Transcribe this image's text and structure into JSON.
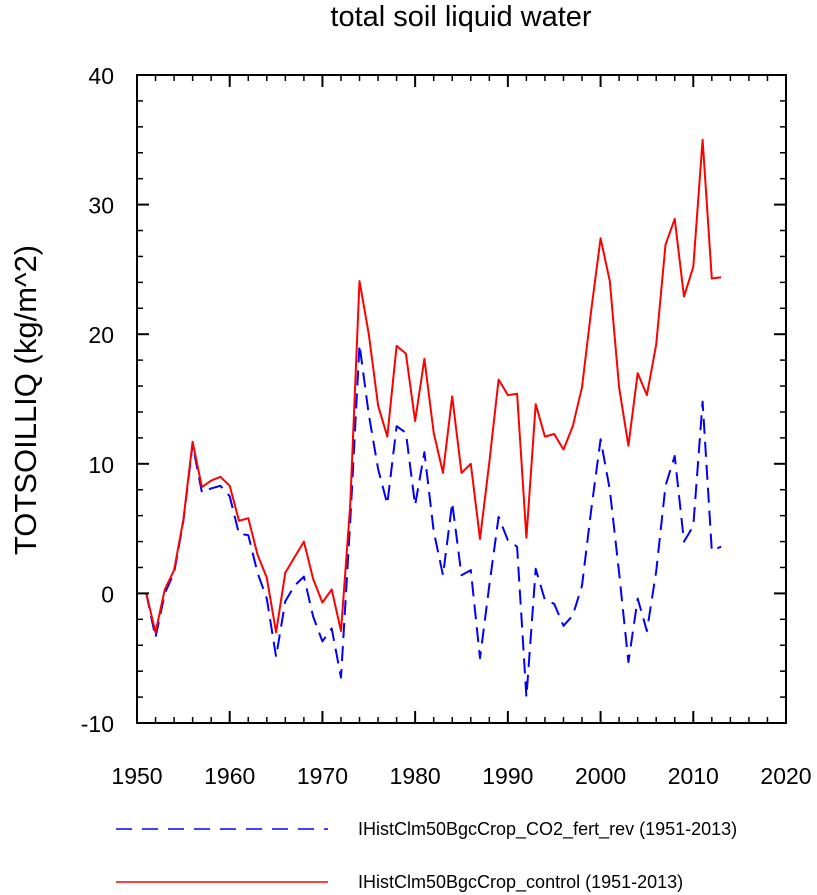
{
  "chart_data": {
    "type": "line",
    "title": "total soil liquid water",
    "xlabel": "",
    "ylabel": "TOTSOILLIQ  (kg/m^2)",
    "xlim": [
      1950,
      2020
    ],
    "ylim": [
      -10,
      40
    ],
    "x_ticks": [
      1950,
      1960,
      1970,
      1980,
      1990,
      2000,
      2010,
      2020
    ],
    "y_ticks": [
      -10,
      0,
      10,
      20,
      30,
      40
    ],
    "grid": false,
    "legend_position": "bottom",
    "x": [
      1951,
      1952,
      1953,
      1954,
      1955,
      1956,
      1957,
      1958,
      1959,
      1960,
      1961,
      1962,
      1963,
      1964,
      1965,
      1966,
      1967,
      1968,
      1969,
      1970,
      1971,
      1972,
      1973,
      1974,
      1975,
      1976,
      1977,
      1978,
      1979,
      1980,
      1981,
      1982,
      1983,
      1984,
      1985,
      1986,
      1987,
      1988,
      1989,
      1990,
      1991,
      1992,
      1993,
      1994,
      1995,
      1996,
      1997,
      1998,
      1999,
      2000,
      2001,
      2002,
      2003,
      2004,
      2005,
      2006,
      2007,
      2008,
      2009,
      2010,
      2011,
      2012,
      2013
    ],
    "series": [
      {
        "name": "IHistClm50BgcCrop_CO2_fert_rev (1951-2013)",
        "color": "#0000ff",
        "dash": "dashed",
        "values": [
          0.0,
          -3.4,
          0.0,
          1.6,
          5.6,
          11.5,
          7.8,
          8.1,
          8.3,
          7.5,
          4.6,
          4.5,
          1.6,
          -0.4,
          -4.9,
          -0.6,
          0.6,
          1.3,
          -1.8,
          -3.7,
          -2.7,
          -6.5,
          5.5,
          19.2,
          13.8,
          9.6,
          6.9,
          12.9,
          12.4,
          6.8,
          10.9,
          4.8,
          1.4,
          7.0,
          1.4,
          1.8,
          -5.0,
          0.6,
          5.9,
          4.1,
          3.6,
          -8.0,
          1.9,
          -0.5,
          -0.8,
          -2.5,
          -1.7,
          0.6,
          6.5,
          11.9,
          8.0,
          1.6,
          -5.3,
          -0.4,
          -2.9,
          1.7,
          8.3,
          10.6,
          4.0,
          5.2,
          14.8,
          3.3,
          3.6
        ]
      },
      {
        "name": "IHistClm50BgcCrop_control (1951-2013)",
        "color": "#ff0000",
        "dash": "solid",
        "values": [
          0.0,
          -3.0,
          0.3,
          1.8,
          5.7,
          11.7,
          8.2,
          8.7,
          9.0,
          8.3,
          5.6,
          5.8,
          3.0,
          1.2,
          -3.0,
          1.6,
          2.8,
          4.0,
          1.1,
          -0.7,
          0.3,
          -2.9,
          6.8,
          24.1,
          20.0,
          14.5,
          12.1,
          19.1,
          18.5,
          13.3,
          18.1,
          12.4,
          9.3,
          15.2,
          9.3,
          10.0,
          4.2,
          10.1,
          16.5,
          15.3,
          15.4,
          4.3,
          14.6,
          12.1,
          12.3,
          11.1,
          12.9,
          15.9,
          21.9,
          27.4,
          24.1,
          15.9,
          11.4,
          17.0,
          15.3,
          19.2,
          26.9,
          28.9,
          22.9,
          25.2,
          35.0,
          24.3,
          24.4
        ]
      }
    ]
  }
}
